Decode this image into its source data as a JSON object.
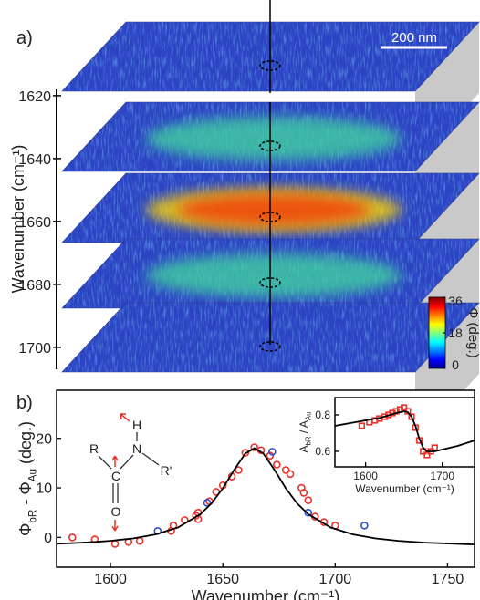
{
  "panel_labels": [
    "a)",
    "b)"
  ],
  "chart_data": [
    {
      "type": "slices",
      "ylabel": "Wavenumber (cm⁻¹)",
      "ylim": [
        1618,
        1707
      ],
      "yticks": [
        1620,
        1640,
        1660,
        1680,
        1700
      ],
      "scale_bar": "200 nm",
      "colorbar": {
        "label": "Φ (deg.)",
        "lim": [
          0,
          36
        ],
        "ticks": [
          0,
          18,
          36
        ]
      }
    },
    {
      "type": "scatter",
      "xlabel": "Wavenumber (cm⁻¹)",
      "ylabel": [
        "Φ",
        "bR",
        " - Φ",
        "Au",
        " (deg.)"
      ],
      "xlim": [
        1576,
        1762
      ],
      "ylim": [
        -6,
        29.7
      ],
      "xticks": [
        1600,
        1650,
        1700,
        1750
      ],
      "yticks": [
        0,
        10,
        20
      ],
      "series": [
        {
          "color": "#e8322a",
          "marker": "circle",
          "x": [
            1583,
            1593,
            1602,
            1608,
            1613,
            1627,
            1628,
            1633,
            1638,
            1639,
            1639,
            1644,
            1647,
            1650,
            1654,
            1657,
            1660,
            1664,
            1667,
            1671,
            1674,
            1678,
            1680,
            1685,
            1686,
            1688,
            1691,
            1695,
            1700
          ],
          "values": [
            0,
            -0.4,
            -1.3,
            -0.9,
            -0.7,
            1.3,
            2.4,
            3.5,
            4.4,
            3.7,
            5,
            7.3,
            9.2,
            10.5,
            12.3,
            13.6,
            17.1,
            18.2,
            17.6,
            16.5,
            14.7,
            13.6,
            12.8,
            10,
            9,
            7.5,
            4.2,
            3.1,
            2.4
          ]
        },
        {
          "color": "#2a4fd0",
          "marker": "circle",
          "x": [
            1621,
            1643,
            1672,
            1688,
            1713
          ],
          "values": [
            1.3,
            7,
            17.3,
            5,
            2.4
          ]
        },
        {
          "color": "#000000",
          "marker": "line",
          "x": [
            1576,
            1590,
            1600,
            1610,
            1620,
            1630,
            1640,
            1645,
            1650,
            1655,
            1660,
            1664,
            1668,
            1673,
            1678,
            1683,
            1688,
            1698,
            1708,
            1718,
            1728,
            1740,
            1762
          ],
          "values": [
            -1.28,
            -1.0,
            -0.68,
            -0.2,
            0.6,
            2.0,
            4.68,
            6.89,
            9.92,
            13.62,
            16.95,
            18,
            16.95,
            13.62,
            9.92,
            6.89,
            4.68,
            2.0,
            0.6,
            -0.2,
            -0.68,
            -1.05,
            -1.42
          ]
        }
      ],
      "molecule": [
        "H",
        "N",
        "R",
        "R'",
        "C",
        "O"
      ]
    },
    {
      "type": "scatter",
      "xlabel": "Wavenumber (cm⁻¹)",
      "ylabel": [
        "A",
        "bR",
        " / A",
        "Au"
      ],
      "xlim": [
        1560,
        1742
      ],
      "ylim": [
        0.515,
        0.895
      ],
      "xticks": [
        1600,
        1700
      ],
      "yticks": [
        0.6,
        0.8
      ],
      "series": [
        {
          "color": "#e8322a",
          "marker": "square",
          "x": [
            1595,
            1605,
            1612,
            1618,
            1625,
            1630,
            1635,
            1640,
            1645,
            1650,
            1655,
            1660,
            1665,
            1670,
            1675,
            1680,
            1685,
            1690
          ],
          "values": [
            0.74,
            0.76,
            0.77,
            0.78,
            0.79,
            0.8,
            0.81,
            0.82,
            0.83,
            0.84,
            0.82,
            0.79,
            0.73,
            0.66,
            0.6,
            0.58,
            0.6,
            0.62
          ]
        },
        {
          "color": "#000000",
          "marker": "line",
          "x": [
            1560,
            1580,
            1600,
            1620,
            1640,
            1650,
            1655,
            1660,
            1665,
            1670,
            1675,
            1680,
            1690,
            1700,
            1720,
            1742
          ],
          "values": [
            0.74,
            0.755,
            0.77,
            0.785,
            0.81,
            0.82,
            0.815,
            0.79,
            0.74,
            0.67,
            0.62,
            0.6,
            0.6,
            0.61,
            0.63,
            0.66
          ]
        }
      ]
    }
  ]
}
